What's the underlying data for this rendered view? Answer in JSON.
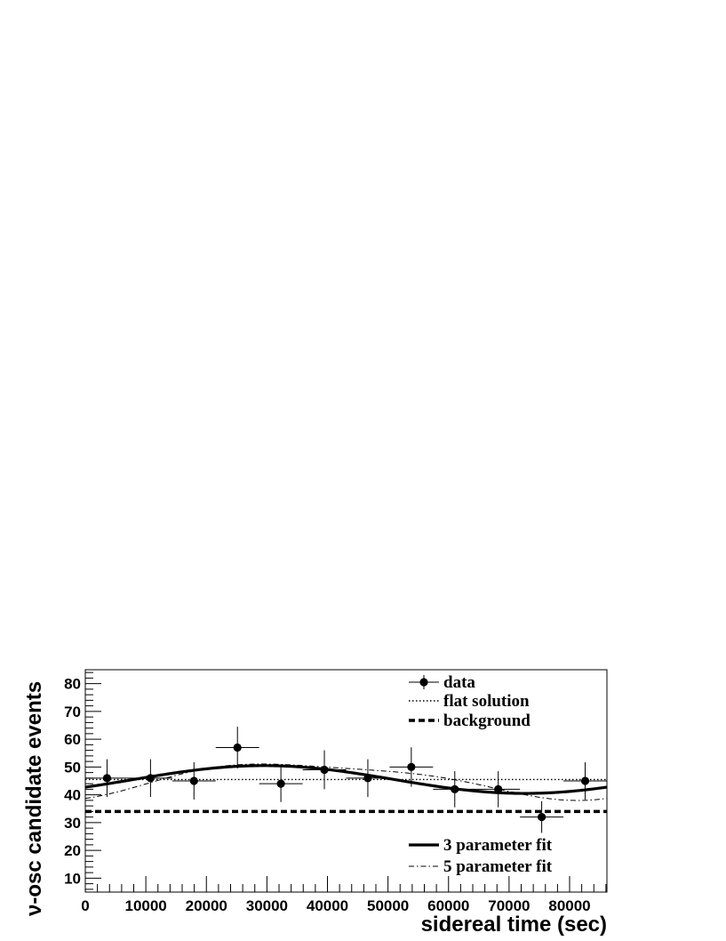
{
  "chart_data": {
    "type": "scatter",
    "xlabel": "sidereal time (sec)",
    "ylabel": "ν-osc candidate events",
    "xlim": [
      0,
      86164
    ],
    "ylim": [
      5,
      85
    ],
    "x_ticks": [
      0,
      10000,
      20000,
      30000,
      40000,
      50000,
      60000,
      70000,
      80000
    ],
    "y_ticks": [
      10,
      20,
      30,
      40,
      50,
      60,
      70,
      80
    ],
    "grid": false,
    "series": [
      {
        "name": "data",
        "style": "points-with-errorbars",
        "x": [
          3590,
          10770,
          17950,
          25130,
          32310,
          39490,
          46670,
          53850,
          61030,
          68210,
          75390,
          82570
        ],
        "x_err": 3590,
        "y": [
          46,
          46,
          45,
          57,
          44,
          49,
          46,
          50,
          42,
          42,
          32,
          45
        ],
        "y_err": [
          6.8,
          6.8,
          6.7,
          7.5,
          6.6,
          7.0,
          6.8,
          7.1,
          6.5,
          6.5,
          5.7,
          6.7
        ]
      },
      {
        "name": "flat solution",
        "style": "dotted",
        "value": 45.5
      },
      {
        "name": "background",
        "style": "dashed",
        "value": 34
      },
      {
        "name": "3 parameter fit",
        "style": "solid-thick",
        "offset": 45.5,
        "amplitude": 5,
        "peak_x": 29500
      },
      {
        "name": "5 parameter fit",
        "style": "dash-dot",
        "offset": 45.5,
        "amplitude1": 6.2,
        "peak1_x": 36000,
        "amplitude2": 1.5,
        "peak2_x": 19000
      }
    ],
    "legend_top": [
      "data",
      "flat solution",
      "background"
    ],
    "legend_bottom": [
      "3 parameter fit",
      "5 parameter fit"
    ],
    "legend_placement": "top-right and bottom-right"
  }
}
